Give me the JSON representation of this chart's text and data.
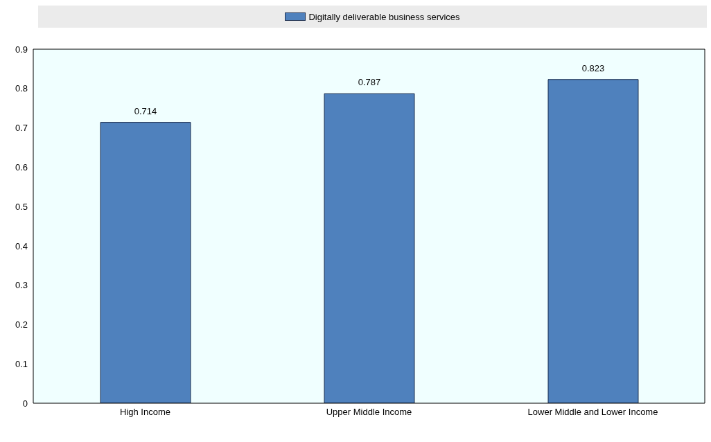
{
  "chart_data": {
    "type": "bar",
    "categories": [
      "High Income",
      "Upper Middle Income",
      "Lower Middle and Lower Income"
    ],
    "series": [
      {
        "name": "Digitally deliverable business services",
        "color": "#4f81bd",
        "values": [
          0.714,
          0.787,
          0.823
        ]
      }
    ],
    "ylim": [
      0,
      0.9
    ],
    "yticks": [
      0,
      0.1,
      0.2,
      0.3,
      0.4,
      0.5,
      0.6,
      0.7,
      0.8,
      0.9
    ],
    "data_labels": true,
    "legend": "top"
  }
}
